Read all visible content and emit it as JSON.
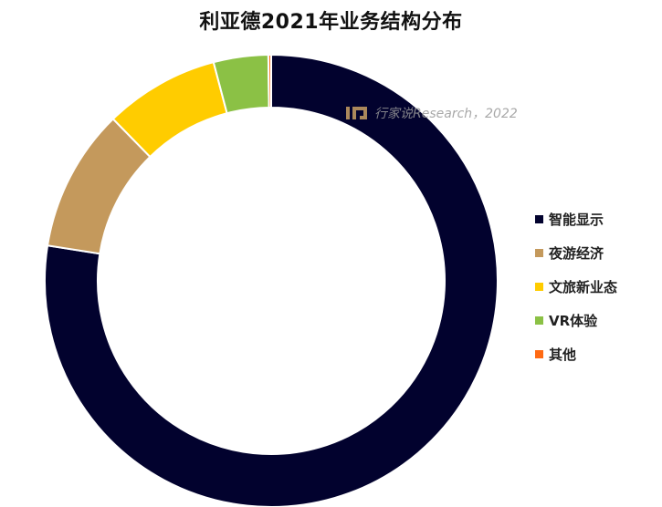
{
  "chart_data": {
    "type": "pie",
    "subtype": "donut",
    "title": "利亚德2021年业务结构分布",
    "watermark": "行家说Research，2022",
    "legend_position": "right",
    "categories": [
      "智能显示",
      "夜游经济",
      "文旅新业态",
      "VR体验",
      "其他"
    ],
    "values": [
      77.5,
      10.2,
      8.2,
      3.9,
      0.2
    ],
    "unit": "%",
    "colors": [
      "#02022E",
      "#C4995C",
      "#FFCC00",
      "#8BC145",
      "#FF6A13"
    ]
  }
}
